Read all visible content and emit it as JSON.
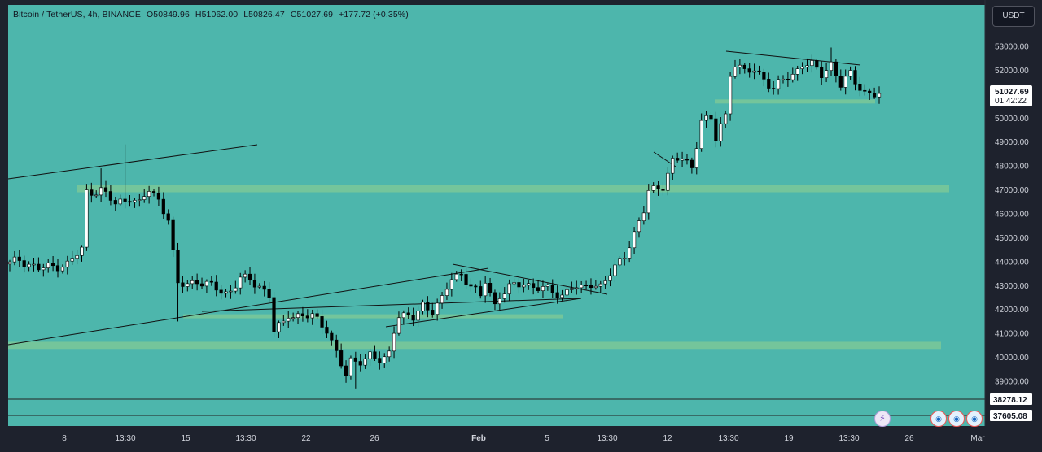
{
  "legend": {
    "symbol": "Bitcoin / TetherUS, 4h, BINANCE",
    "open": "O50849.96",
    "high": "H51062.00",
    "low": "L50826.47",
    "close": "C51027.69",
    "change": "+177.72 (+0.35%)"
  },
  "currency_button": "USDT",
  "price_label": {
    "value": "51027.69",
    "countdown": "01:42:22"
  },
  "horizontal_line_labels": [
    "38278.12",
    "37605.08"
  ],
  "colors": {
    "background": "#4db6ac",
    "zone": "#81c995",
    "candle_up": "#ffffff",
    "candle_down": "#000000",
    "frame": "#1e222d"
  },
  "icons": [
    "lightning-icon",
    "us-flag-icon",
    "us-flag-icon",
    "us-flag-icon"
  ],
  "chart_data": {
    "type": "candlestick",
    "title": "Bitcoin / TetherUS, 4h, BINANCE",
    "timeframe": "4h",
    "y_axis": {
      "ticks": [
        "53000.00",
        "52000.00",
        "51000.00",
        "50000.00",
        "49000.00",
        "48000.00",
        "47000.00",
        "46000.00",
        "45000.00",
        "44000.00",
        "43000.00",
        "42000.00",
        "41000.00",
        "40000.00",
        "39000.00"
      ],
      "range": [
        37000,
        53800
      ]
    },
    "x_axis": {
      "ticks": [
        "8",
        "13:30",
        "15",
        "13:30",
        "22",
        "26",
        "Feb",
        "5",
        "13:30",
        "12",
        "13:30",
        "19",
        "13:30",
        "26",
        "Mar"
      ]
    },
    "price_path": [
      [
        0,
        43900
      ],
      [
        2,
        44100
      ],
      [
        6,
        43700
      ],
      [
        12,
        43900
      ],
      [
        15,
        44500
      ],
      [
        16,
        46900
      ],
      [
        19,
        47000
      ],
      [
        22,
        46400
      ],
      [
        25,
        46700
      ],
      [
        27,
        46400
      ],
      [
        29,
        47000
      ],
      [
        31,
        46600
      ],
      [
        33,
        45800
      ],
      [
        34,
        44300
      ],
      [
        35,
        43000
      ],
      [
        39,
        43200
      ],
      [
        45,
        42700
      ],
      [
        46,
        42800
      ],
      [
        48,
        43300
      ],
      [
        50,
        43200
      ],
      [
        52,
        43000
      ],
      [
        54,
        42600
      ],
      [
        55,
        41100
      ],
      [
        57,
        41400
      ],
      [
        58,
        41800
      ],
      [
        63,
        41700
      ],
      [
        66,
        41200
      ],
      [
        68,
        40200
      ],
      [
        70,
        39200
      ],
      [
        71,
        39800
      ],
      [
        73,
        39900
      ],
      [
        75,
        40100
      ],
      [
        77,
        39800
      ],
      [
        78,
        39900
      ],
      [
        79,
        40200
      ],
      [
        80,
        41200
      ],
      [
        81,
        41800
      ],
      [
        84,
        41600
      ],
      [
        86,
        42200
      ],
      [
        88,
        42000
      ],
      [
        90,
        42400
      ],
      [
        92,
        43300
      ],
      [
        94,
        43500
      ],
      [
        96,
        43000
      ],
      [
        98,
        42500
      ],
      [
        99,
        43200
      ],
      [
        101,
        42200
      ],
      [
        102,
        42600
      ],
      [
        104,
        42900
      ],
      [
        107,
        43100
      ],
      [
        112,
        42800
      ],
      [
        115,
        42600
      ],
      [
        117,
        43000
      ],
      [
        119,
        42800
      ],
      [
        121,
        43100
      ],
      [
        123,
        43000
      ],
      [
        126,
        43700
      ],
      [
        128,
        44300
      ],
      [
        130,
        45200
      ],
      [
        132,
        46100
      ],
      [
        133,
        46900
      ],
      [
        136,
        47200
      ],
      [
        138,
        48200
      ],
      [
        140,
        48300
      ],
      [
        142,
        47900
      ],
      [
        144,
        50000
      ],
      [
        146,
        49900
      ],
      [
        147,
        49100
      ],
      [
        148,
        49700
      ],
      [
        149,
        50100
      ],
      [
        150,
        51900
      ],
      [
        151,
        52300
      ],
      [
        153,
        51900
      ],
      [
        155,
        52000
      ],
      [
        157,
        51700
      ],
      [
        159,
        51200
      ],
      [
        161,
        51600
      ],
      [
        163,
        51800
      ],
      [
        165,
        52300
      ],
      [
        167,
        52200
      ],
      [
        169,
        51800
      ],
      [
        171,
        52300
      ],
      [
        173,
        51400
      ],
      [
        175,
        51800
      ],
      [
        176,
        51500
      ],
      [
        178,
        51100
      ],
      [
        180,
        51000
      ],
      [
        181,
        51027.69
      ]
    ],
    "support_zones": [
      [
        46900,
        47200
      ],
      [
        41650,
        41800
      ],
      [
        40350,
        40650
      ],
      [
        50650,
        50780
      ]
    ],
    "horizontal_lines": [
      38278.12,
      37605.08
    ],
    "last_price": 51027.69
  }
}
